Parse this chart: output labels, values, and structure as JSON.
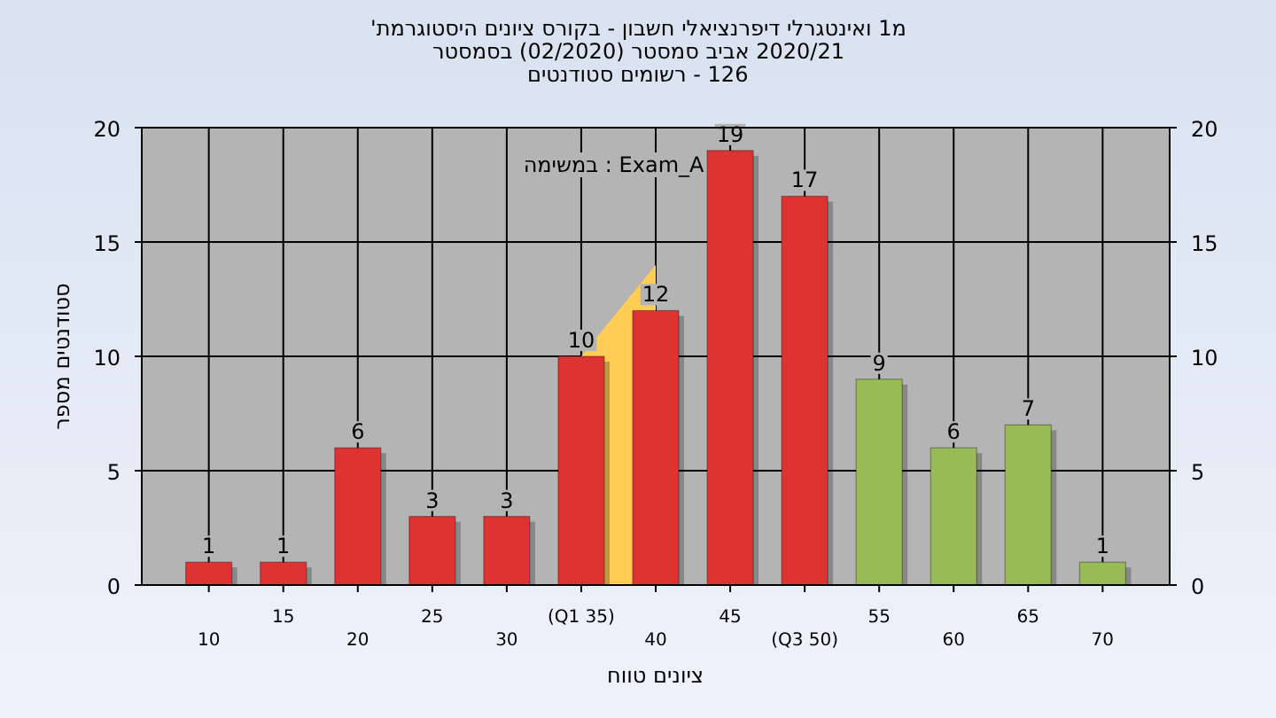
{
  "chart_data": {
    "type": "bar",
    "title": "'היסטוגרמת ציונים בקורס - חשבון דיפרנציאלי ואינטגרלי 1מ",
    "subtitle": "בסמסטר (02/2020) סמסטר אביב 2020/21",
    "annotations": [
      "סטודנטים רשומים - 126",
      "במשימה : Exam_A"
    ],
    "xlabel": "טווח ציונים",
    "ylabel": "מספר סטודנטים",
    "categories": [
      "10",
      "15",
      "20",
      "25",
      "30",
      "(Q1 35)",
      "40",
      "45",
      "(Q3 50)",
      "55",
      "60",
      "65",
      "70"
    ],
    "series": [
      {
        "type": "area",
        "color": "#ffcc55",
        "values": [
          null,
          null,
          null,
          null,
          null,
          10,
          14,
          null,
          null,
          null,
          null,
          null,
          null
        ]
      },
      {
        "values": [
          1,
          1,
          6,
          3,
          3,
          10,
          12,
          19,
          17,
          9,
          6,
          7,
          1
        ],
        "value_labels": [
          "1",
          "1",
          "6",
          "3",
          "3",
          "10",
          "12",
          "19",
          "17",
          "9",
          "6",
          "7",
          "1"
        ],
        "colors": [
          "#dd3333",
          "#dd3333",
          "#dd3333",
          "#dd3333",
          "#dd3333",
          "#dd3333",
          "#dd3333",
          "#dd3333",
          "#dd3333",
          "#99bb55",
          "#99bb55",
          "#99bb55",
          "#99bb55"
        ]
      }
    ],
    "ylim": [
      0,
      20
    ],
    "yticks": [
      0,
      5,
      10,
      15,
      20
    ],
    "y2lim": [
      0,
      20
    ],
    "y2ticks": [
      0,
      5,
      10,
      15,
      20
    ],
    "grid": true
  }
}
